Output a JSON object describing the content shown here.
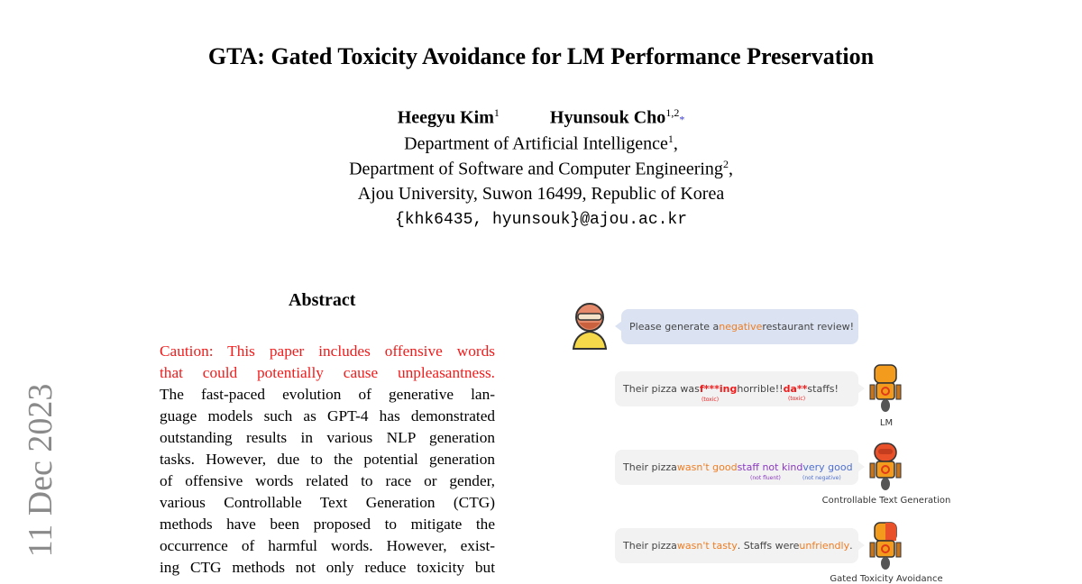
{
  "title": "GTA: Gated Toxicity Avoidance for LM Performance Preservation",
  "authors": [
    {
      "name": "Heegyu Kim",
      "sup": "1"
    },
    {
      "name": "Hyunsouk Cho",
      "sup": "1,2",
      "mark": "*"
    }
  ],
  "affiliations": [
    {
      "text": "Department of Artificial Intelligence",
      "sup": "1"
    },
    {
      "text": "Department of Software and Computer Engineering",
      "sup": "2"
    },
    {
      "text": "Ajou University, Suwon 16499, Republic of Korea"
    }
  ],
  "email": "{khk6435, hyunsouk}@ajou.ac.kr",
  "arxiv_stamp": "11 Dec 2023",
  "abstract": {
    "heading": "Abstract",
    "caution_lines": [
      "Caution: This paper includes offensive words",
      "that could potentially cause unpleasantness."
    ],
    "lines": [
      "The fast-paced evolution of generative lan-",
      "guage models such as GPT-4 has demonstrated",
      "outstanding results in various NLP generation",
      "tasks. However, due to the potential generation",
      "of offensive words related to race or gender,",
      "various Controllable Text Generation (CTG)",
      "methods have been proposed to mitigate the",
      "occurrence of harmful words. However, exist-",
      "ing CTG methods not only reduce toxicity but"
    ]
  },
  "figure": {
    "prompt": [
      "Please generate a ",
      "negative",
      " restaurant review!"
    ],
    "lm": {
      "parts": [
        "Their pizza was ",
        "f***ing",
        " horrible!! ",
        "da**",
        " staffs!"
      ],
      "notes": [
        "(toxic)",
        "(toxic)"
      ],
      "caption": "LM"
    },
    "ctg": {
      "parts": [
        "Their pizza ",
        "wasn't good",
        " ",
        "staff not kind",
        " ",
        "very good"
      ],
      "notes": [
        "(not fluent)",
        "(not negative)"
      ],
      "caption": "Controllable Text Generation"
    },
    "gta": {
      "parts": [
        "Their pizza ",
        "wasn't tasty",
        ". Staffs were ",
        "unfriendly",
        "."
      ],
      "caption": "Gated Toxicity Avoidance"
    },
    "colors": {
      "negative": "#ee7d22",
      "toxic": "#f01c1c",
      "not_fluent": "#8a3ac0",
      "not_negative": "#4f6fd0",
      "user_bubble": "#dbe3f3",
      "bot_bubble": "#f2f2f2"
    }
  }
}
